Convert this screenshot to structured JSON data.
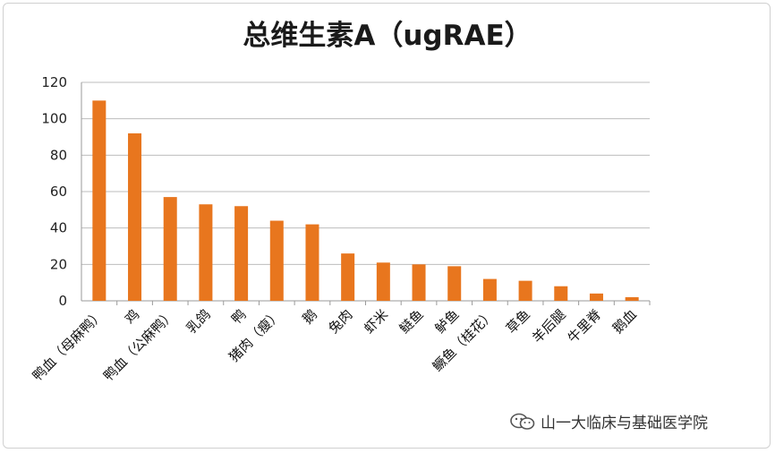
{
  "colors": {
    "bar": "#E8761E",
    "grid": "#bdbdbd",
    "axis": "#9a9a9a"
  },
  "watermark": {
    "text": "山一大临床与基础医学院",
    "icon": "wechat-icon"
  },
  "chart_data": {
    "type": "bar",
    "title": "总维生素A（ugRAE）",
    "xlabel": "",
    "ylabel": "",
    "ylim": [
      0,
      120
    ],
    "yticks": [
      0,
      20,
      40,
      60,
      80,
      100,
      120
    ],
    "grid": true,
    "legend": "none",
    "categories": [
      "鸭血（母麻鸭）",
      "鸡",
      "鸭血（公麻鸭）",
      "乳鸽",
      "鸭",
      "猪肉（瘦）",
      "鹅",
      "兔肉",
      "虾米",
      "鲢鱼",
      "鲈鱼",
      "鳜鱼（桂花）",
      "草鱼",
      "羊后腿",
      "牛里脊",
      "鹅血"
    ],
    "values": [
      110,
      92,
      57,
      53,
      52,
      44,
      42,
      26,
      21,
      20,
      19,
      12,
      11,
      8,
      4,
      2
    ]
  }
}
